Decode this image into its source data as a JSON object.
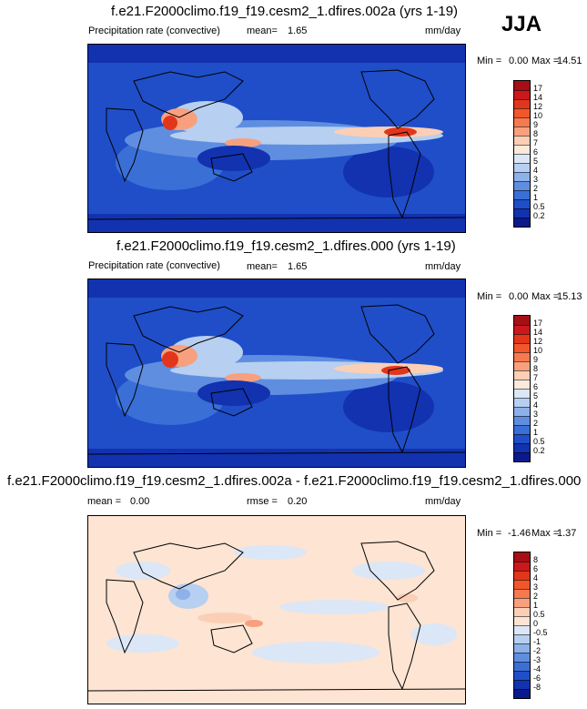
{
  "season": "JJA",
  "panels": [
    {
      "title": "f.e21.F2000climo.f19_f19.cesm2_1.dfires.002a (yrs 1-19)",
      "variable": "Precipitation rate (convective)",
      "stat_label": "mean=",
      "stat_value": "1.65",
      "units": "mm/day",
      "min_label": "Min =",
      "min_value": "0.00",
      "max_label": "Max =",
      "max_value": "14.51"
    },
    {
      "title": "f.e21.F2000climo.f19_f19.cesm2_1.dfires.000 (yrs 1-19)",
      "variable": "Precipitation rate (convective)",
      "stat_label": "mean=",
      "stat_value": "1.65",
      "units": "mm/day",
      "min_label": "Min =",
      "min_value": "0.00",
      "max_label": "Max =",
      "max_value": "15.13"
    },
    {
      "title": "f.e21.F2000climo.f19_f19.cesm2_1.dfires.002a - f.e21.F2000climo.f19_f19.cesm2_1.dfires.000",
      "mean_label": "mean =",
      "mean_value": "0.00",
      "rmse_label": "rmse =",
      "rmse_value": "0.20",
      "units": "mm/day",
      "min_label": "Min =",
      "min_value": "-1.46",
      "max_label": "Max =",
      "max_value": "1.37"
    }
  ],
  "chart_data": [
    {
      "type": "heatmap",
      "projection": "global cylindrical equidistant, 180 centered",
      "colorbar_levels": [
        "17",
        "14",
        "12",
        "10",
        "9",
        "8",
        "7",
        "6",
        "5",
        "4",
        "3",
        "2",
        "1",
        "0.5",
        "0.2"
      ],
      "colorbar_colors": [
        "#a50f15",
        "#cb181d",
        "#e2361c",
        "#f2562b",
        "#f7794e",
        "#f8a07e",
        "#fbcfb5",
        "#fbe9dc",
        "#dbe7f6",
        "#b7cff0",
        "#8db1e8",
        "#5f8ee0",
        "#3a6fd6",
        "#1f4ec8",
        "#1232b0",
        "#0a1a8c"
      ]
    },
    {
      "type": "heatmap",
      "projection": "global cylindrical equidistant, 180 centered",
      "colorbar_levels": [
        "17",
        "14",
        "12",
        "10",
        "9",
        "8",
        "7",
        "6",
        "5",
        "4",
        "3",
        "2",
        "1",
        "0.5",
        "0.2"
      ],
      "colorbar_colors": [
        "#a50f15",
        "#cb181d",
        "#e2361c",
        "#f2562b",
        "#f7794e",
        "#f8a07e",
        "#fbcfb5",
        "#fbe9dc",
        "#dbe7f6",
        "#b7cff0",
        "#8db1e8",
        "#5f8ee0",
        "#3a6fd6",
        "#1f4ec8",
        "#1232b0",
        "#0a1a8c"
      ]
    },
    {
      "type": "heatmap",
      "projection": "global cylindrical equidistant, 180 centered",
      "colorbar_levels": [
        "8",
        "6",
        "4",
        "3",
        "2",
        "1",
        "0.5",
        "0",
        "-0.5",
        "-1",
        "-2",
        "-3",
        "-4",
        "-6",
        "-8"
      ],
      "colorbar_colors": [
        "#a50f15",
        "#cb181d",
        "#e2361c",
        "#f2562b",
        "#f7794e",
        "#f8a07e",
        "#fbcfb5",
        "#fde4d3",
        "#dbe7f6",
        "#b7cff0",
        "#8db1e8",
        "#5f8ee0",
        "#3a6fd6",
        "#1f4ec8",
        "#1232b0",
        "#0a1a8c"
      ]
    }
  ]
}
